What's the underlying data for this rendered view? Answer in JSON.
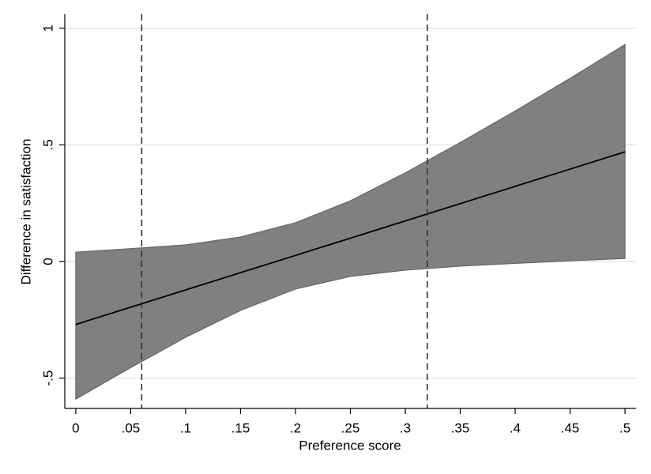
{
  "chart_data": {
    "type": "band-line",
    "xlabel": "Preference score",
    "ylabel": "Difference in satisfaction",
    "x": [
      0,
      0.05,
      0.1,
      0.15,
      0.2,
      0.25,
      0.3,
      0.35,
      0.4,
      0.45,
      0.5
    ],
    "values": [
      -0.27,
      -0.196,
      -0.122,
      -0.048,
      0.026,
      0.1,
      0.174,
      0.248,
      0.322,
      0.396,
      0.47
    ],
    "ci_upper": [
      0.04,
      0.055,
      0.071,
      0.105,
      0.166,
      0.26,
      0.38,
      0.51,
      0.645,
      0.785,
      0.93
    ],
    "ci_lower": [
      -0.59,
      -0.455,
      -0.325,
      -0.21,
      -0.118,
      -0.064,
      -0.037,
      -0.02,
      -0.008,
      0.003,
      0.013
    ],
    "color": "#000000",
    "band_color": "#808080",
    "reference_lines_x": [
      0.06,
      0.32
    ],
    "xlim": [
      -0.01,
      0.51
    ],
    "ylim": [
      -0.63,
      1.06
    ],
    "xticks": [
      0,
      {
        "value": 0.05,
        "label": ".05"
      },
      {
        "value": 0.1,
        "label": ".1"
      },
      {
        "value": 0.15,
        "label": ".15"
      },
      {
        "value": 0.2,
        "label": ".2"
      },
      {
        "value": 0.25,
        "label": ".25"
      },
      {
        "value": 0.3,
        "label": ".3"
      },
      {
        "value": 0.35,
        "label": ".35"
      },
      {
        "value": 0.4,
        "label": ".4"
      },
      {
        "value": 0.45,
        "label": ".45"
      },
      {
        "value": 0.5,
        "label": ".5"
      }
    ],
    "yticks": [
      {
        "value": -0.5,
        "label": "-.5"
      },
      0,
      {
        "value": 0.5,
        "label": ".5"
      },
      1
    ],
    "grid": true
  }
}
